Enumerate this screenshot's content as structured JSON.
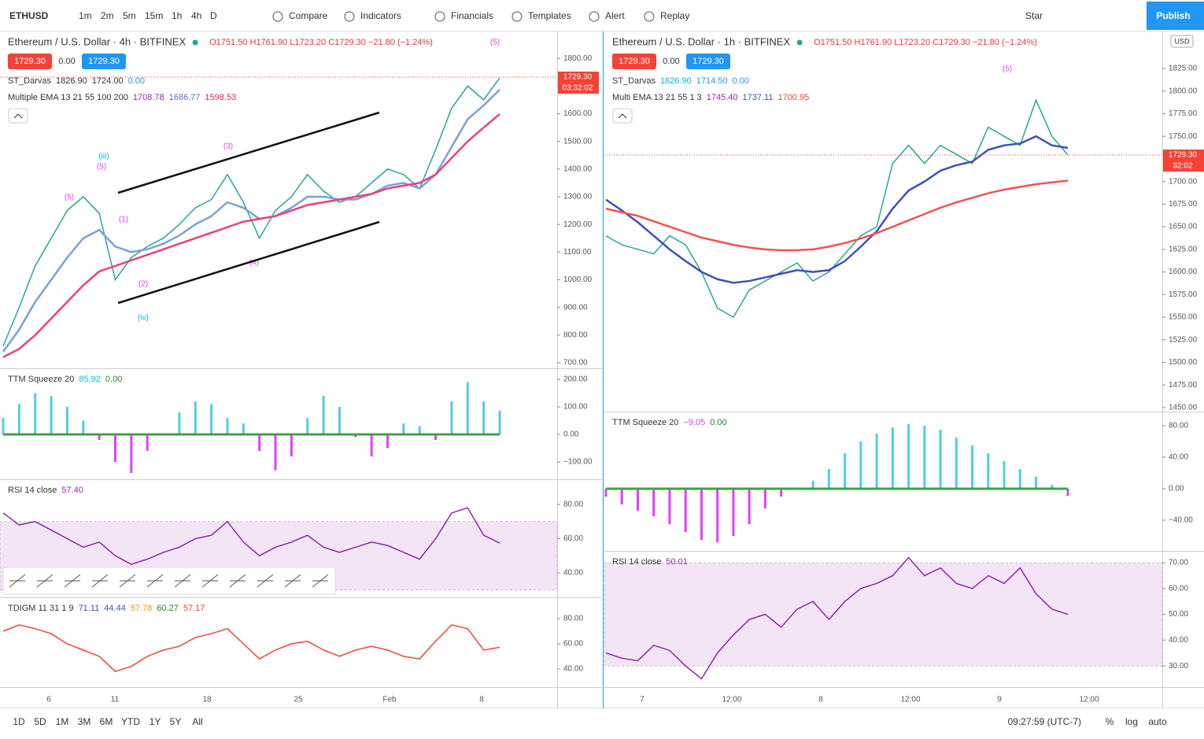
{
  "toolbar": {
    "symbol": "ETHUSD",
    "intervals": [
      "1m",
      "2m",
      "5m",
      "15m",
      "1h",
      "4h",
      "D"
    ],
    "buttons": [
      "Compare",
      "Indicators",
      "Financials",
      "Templates",
      "Alert",
      "Replay"
    ],
    "star": "Star",
    "publish": "Publish"
  },
  "left_chart": {
    "title": "Ethereum / U.S. Dollar · 4h · BITFINEX",
    "ohlc": "O1751.50 H1761.90 L1723.20 C1729.30 −21.80 (−1.24%)",
    "badges": [
      "1729.30",
      "0.00",
      "1729.30"
    ],
    "last_price": "1729.30",
    "countdown": "03:32:02",
    "time_labels": [
      "6",
      "11",
      "18",
      "25",
      "Feb",
      "8"
    ],
    "annotations": [
      "(5)",
      "(iii)",
      "(5)",
      "(5)",
      "(3)",
      "(1)",
      "(2)",
      "(4)",
      "(iv)"
    ],
    "panes": [
      {
        "legends": [
          {
            "name": "ST_Darvas",
            "values": [
              "1826.90",
              "1724.00",
              "0.00"
            ],
            "colors": [
              "#333333",
              "#333333",
              "#2196f3"
            ]
          },
          {
            "name": "Multiple EMA 13 21 55 100 200",
            "values": [
              "1708.78",
              "1686.77",
              "1598.53"
            ],
            "colors": [
              "#9c27b0",
              "#5c6bc0",
              "#e91e63"
            ]
          }
        ],
        "ylim": [
          680,
          1897
        ],
        "yticks": [
          {
            "value": 700,
            "label": "700.00"
          },
          {
            "value": 800,
            "label": "800.00"
          },
          {
            "value": 900,
            "label": "900.00"
          },
          {
            "value": 1000,
            "label": "1000.00"
          },
          {
            "value": 1100,
            "label": "1100.00"
          },
          {
            "value": 1200,
            "label": "1200.00"
          },
          {
            "value": 1300,
            "label": "1300.00"
          },
          {
            "value": 1400,
            "label": "1400.00"
          },
          {
            "value": 1500,
            "label": "1500.00"
          },
          {
            "value": 1600,
            "label": "1600.00"
          },
          {
            "value": 1700,
            "label": "1700.00"
          },
          {
            "value": 1800,
            "label": "1800.00"
          }
        ],
        "series": [
          {
            "kind": "line",
            "color": "#26a69a",
            "values": [
              760,
              900,
              1050,
              1150,
              1250,
              1300,
              1240,
              1000,
              1080,
              1120,
              1150,
              1200,
              1260,
              1290,
              1380,
              1280,
              1150,
              1250,
              1300,
              1380,
              1320,
              1280,
              1300,
              1350,
              1400,
              1380,
              1330,
              1470,
              1620,
              1700,
              1650,
              1729.3
            ]
          },
          {
            "kind": "line",
            "color": "#7e9fd8",
            "values": [
              740,
              820,
              920,
              1000,
              1080,
              1150,
              1180,
              1120,
              1100,
              1110,
              1130,
              1160,
              1200,
              1230,
              1280,
              1260,
              1220,
              1230,
              1260,
              1300,
              1300,
              1290,
              1290,
              1310,
              1340,
              1350,
              1330,
              1380,
              1480,
              1580,
              1630,
              1686.77
            ]
          },
          {
            "kind": "line",
            "color": "#ec407a",
            "values": [
              720,
              750,
              800,
              860,
              920,
              980,
              1030,
              1050,
              1070,
              1090,
              1110,
              1130,
              1150,
              1170,
              1190,
              1210,
              1220,
              1230,
              1250,
              1270,
              1280,
              1290,
              1300,
              1310,
              1330,
              1340,
              1350,
              1380,
              1440,
              1500,
              1550,
              1598.53
            ]
          }
        ]
      },
      {
        "legends": [
          {
            "name": "TTM Squeeze 20",
            "values": [
              "85.92",
              "0.00"
            ],
            "colors": [
              "#00bcd4",
              "#2e7d32"
            ]
          }
        ],
        "ylim": [
          -163,
          240
        ],
        "yticks": [
          {
            "value": 200,
            "label": "200.00"
          },
          {
            "value": 100,
            "label": "100.00"
          },
          {
            "value": 0,
            "label": "0.00"
          },
          {
            "value": -100,
            "label": "−100.00"
          }
        ],
        "series": [
          {
            "kind": "histogram",
            "color": "#4dd0e1",
            "neg_color": "#e040fb",
            "values": [
              60,
              110,
              150,
              140,
              100,
              50,
              -20,
              -100,
              -140,
              -60,
              0,
              80,
              120,
              110,
              60,
              40,
              -60,
              -130,
              -80,
              60,
              140,
              100,
              -10,
              -80,
              -50,
              40,
              30,
              -20,
              120,
              190,
              120,
              85.92
            ]
          }
        ]
      },
      {
        "legends": [
          {
            "name": "RSI 14 close",
            "values": [
              "57.40"
            ],
            "colors": [
              "#9c27b0"
            ]
          }
        ],
        "ylim": [
          25.7,
          94.7
        ],
        "band": [
          30,
          70
        ],
        "yticks": [
          {
            "value": 80,
            "label": "80.00"
          },
          {
            "value": 60,
            "label": "60.00"
          },
          {
            "value": 40,
            "label": "40.00"
          }
        ],
        "series": [
          {
            "kind": "line",
            "color": "#8e24aa",
            "values": [
              75,
              68,
              70,
              65,
              60,
              55,
              58,
              50,
              45,
              48,
              52,
              55,
              60,
              62,
              70,
              58,
              50,
              55,
              58,
              62,
              55,
              52,
              55,
              58,
              56,
              52,
              48,
              60,
              75,
              78,
              62,
              57.4
            ]
          }
        ]
      },
      {
        "legends": [
          {
            "name": "TDIGM 11 31 1 9",
            "values": [
              "71.11",
              "44.44",
              "57.78",
              "60.27",
              "57.17"
            ],
            "colors": [
              "#3f51b5",
              "#3f51b5",
              "#ff9800",
              "#2e7d32",
              "#f44336"
            ]
          }
        ],
        "ylim": [
          25.6,
          96.9
        ],
        "yticks": [
          {
            "value": 80,
            "label": "80.00"
          },
          {
            "value": 60,
            "label": "60.00"
          },
          {
            "value": 40,
            "label": "40.00"
          }
        ],
        "series": [
          {
            "kind": "line",
            "color": "#f44336",
            "values": [
              70,
              75,
              72,
              68,
              60,
              55,
              50,
              38,
              42,
              50,
              55,
              58,
              65,
              68,
              72,
              60,
              48,
              55,
              60,
              62,
              55,
              50,
              55,
              58,
              55,
              50,
              48,
              62,
              75,
              72,
              55,
              57.17
            ]
          }
        ]
      }
    ]
  },
  "right_chart": {
    "title": "Ethereum / U.S. Dollar · 1h · BITFINEX",
    "ohlc": "O1751.50 H1761.90 L1723.20 C1729.30 −21.80 (−1.24%)",
    "badges": [
      "1729.30",
      "0.00",
      "1729.30"
    ],
    "last_price": "1729.30",
    "countdown": "32:02",
    "currency": "USD",
    "time_labels": [
      "7",
      "12:00",
      "8",
      "12:00",
      "9",
      "12:00"
    ],
    "annotations": [
      "(5)"
    ],
    "panes": [
      {
        "legends": [
          {
            "name": "ST_Darvas",
            "values": [
              "1826.90",
              "1714.50",
              "0.00"
            ],
            "colors": [
              "#00bcd4",
              "#2196f3",
              "#2196f3"
            ]
          },
          {
            "name": "Multi EMA 13 21 55 1 3",
            "values": [
              "1745.40",
              "1737.11",
              "1700.95"
            ],
            "colors": [
              "#9c27b0",
              "#3f51b5",
              "#f44336"
            ]
          }
        ],
        "ylim": [
          1445.6,
          1865.9
        ],
        "yticks": [
          {
            "value": 1450,
            "label": "1450.00"
          },
          {
            "value": 1475,
            "label": "1475.00"
          },
          {
            "value": 1500,
            "label": "1500.00"
          },
          {
            "value": 1525,
            "label": "1525.00"
          },
          {
            "value": 1550,
            "label": "1550.00"
          },
          {
            "value": 1575,
            "label": "1575.00"
          },
          {
            "value": 1600,
            "label": "1600.00"
          },
          {
            "value": 1625,
            "label": "1625.00"
          },
          {
            "value": 1650,
            "label": "1650.00"
          },
          {
            "value": 1675,
            "label": "1675.00"
          },
          {
            "value": 1700,
            "label": "1700.00"
          },
          {
            "value": 1725,
            "label": "1725.00"
          },
          {
            "value": 1750,
            "label": "1750.00"
          },
          {
            "value": 1775,
            "label": "1775.00"
          },
          {
            "value": 1800,
            "label": "1800.00"
          },
          {
            "value": 1825,
            "label": "1825.00"
          }
        ],
        "series": [
          {
            "kind": "line",
            "color": "#26a69a",
            "values": [
              1640,
              1630,
              1625,
              1620,
              1640,
              1630,
              1600,
              1560,
              1550,
              1580,
              1590,
              1600,
              1610,
              1590,
              1600,
              1620,
              1640,
              1650,
              1720,
              1740,
              1720,
              1740,
              1730,
              1720,
              1760,
              1750,
              1740,
              1790,
              1750,
              1729.3
            ]
          },
          {
            "kind": "line",
            "color": "#3f51b5",
            "values": [
              1680,
              1668,
              1655,
              1640,
              1625,
              1612,
              1600,
              1592,
              1588,
              1590,
              1594,
              1598,
              1602,
              1600,
              1602,
              1612,
              1628,
              1645,
              1670,
              1690,
              1700,
              1712,
              1718,
              1722,
              1735,
              1740,
              1742,
              1750,
              1740,
              1737.11
            ]
          },
          {
            "kind": "line",
            "color": "#f05350",
            "values": [
              1670,
              1666,
              1662,
              1656,
              1650,
              1644,
              1638,
              1634,
              1630,
              1627,
              1625,
              1624,
              1624,
              1625,
              1628,
              1632,
              1637,
              1643,
              1650,
              1657,
              1664,
              1671,
              1677,
              1682,
              1687,
              1691,
              1694,
              1697,
              1699,
              1700.95
            ]
          }
        ]
      },
      {
        "legends": [
          {
            "name": "TTM Squeeze 20",
            "values": [
              "−9.05",
              "0.00"
            ],
            "colors": [
              "#e040fb",
              "#2e7d32"
            ]
          }
        ],
        "ylim": [
          -79,
          98
        ],
        "yticks": [
          {
            "value": 80,
            "label": "80.00"
          },
          {
            "value": 40,
            "label": "40.00"
          },
          {
            "value": 0,
            "label": "0.00"
          },
          {
            "value": -40,
            "label": "−40.00"
          }
        ],
        "series": [
          {
            "kind": "histogram",
            "color": "#4dd0e1",
            "neg_color": "#e040fb",
            "values": [
              -10,
              -20,
              -28,
              -35,
              -45,
              -55,
              -65,
              -68,
              -60,
              -45,
              -25,
              -10,
              0,
              10,
              25,
              45,
              60,
              70,
              78,
              82,
              80,
              75,
              65,
              55,
              45,
              35,
              25,
              15,
              5,
              -9.05
            ]
          }
        ]
      },
      {
        "legends": [
          {
            "name": "RSI 14 close",
            "values": [
              "50.01"
            ],
            "colors": [
              "#9c27b0"
            ]
          }
        ],
        "ylim": [
          21.8,
          74.6
        ],
        "band": [
          30,
          70
        ],
        "yticks": [
          {
            "value": 70,
            "label": "70.00"
          },
          {
            "value": 60,
            "label": "60.00"
          },
          {
            "value": 50,
            "label": "50.00"
          },
          {
            "value": 40,
            "label": "40.00"
          },
          {
            "value": 30,
            "label": "30.00"
          }
        ],
        "series": [
          {
            "kind": "line",
            "color": "#8e24aa",
            "values": [
              35,
              33,
              32,
              38,
              36,
              30,
              25,
              35,
              42,
              48,
              50,
              45,
              52,
              55,
              48,
              55,
              60,
              62,
              65,
              72,
              65,
              68,
              62,
              60,
              65,
              62,
              68,
              58,
              52,
              50.01
            ]
          }
        ]
      }
    ]
  },
  "bottom_bar": {
    "ranges": [
      "1D",
      "5D",
      "1M",
      "3M",
      "6M",
      "YTD",
      "1Y",
      "5Y",
      "All"
    ],
    "clock": "09:27:59 (UTC-7)",
    "options": [
      "%",
      "log",
      "auto"
    ]
  }
}
